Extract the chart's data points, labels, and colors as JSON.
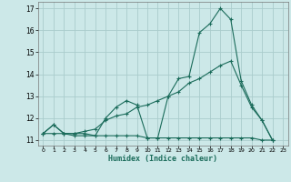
{
  "xlabel": "Humidex (Indice chaleur)",
  "bg_color": "#cce8e8",
  "grid_color": "#aacccc",
  "line_color": "#1a6b5a",
  "xlim": [
    -0.5,
    23.5
  ],
  "ylim": [
    10.75,
    17.3
  ],
  "xticks": [
    0,
    1,
    2,
    3,
    4,
    5,
    6,
    7,
    8,
    9,
    10,
    11,
    12,
    13,
    14,
    15,
    16,
    17,
    18,
    19,
    20,
    21,
    22,
    23
  ],
  "yticks": [
    11,
    12,
    13,
    14,
    15,
    16,
    17
  ],
  "line1_x": [
    0,
    1,
    2,
    3,
    4,
    5,
    6,
    7,
    8,
    9,
    10,
    11,
    12,
    13,
    14,
    15,
    16,
    17,
    18,
    19,
    20,
    21,
    22
  ],
  "line1_y": [
    11.3,
    11.7,
    11.3,
    11.2,
    11.2,
    11.2,
    12.0,
    12.5,
    12.8,
    12.6,
    11.1,
    11.1,
    13.0,
    13.8,
    13.9,
    15.9,
    16.3,
    17.0,
    16.5,
    13.7,
    12.6,
    11.9,
    11.0
  ],
  "line2_x": [
    0,
    1,
    2,
    3,
    4,
    5,
    6,
    7,
    8,
    9,
    10,
    11,
    12,
    13,
    14,
    15,
    16,
    17,
    18,
    19,
    20,
    21,
    22
  ],
  "line2_y": [
    11.3,
    11.7,
    11.3,
    11.3,
    11.4,
    11.5,
    11.9,
    12.1,
    12.2,
    12.5,
    12.6,
    12.8,
    13.0,
    13.2,
    13.6,
    13.8,
    14.1,
    14.4,
    14.6,
    13.5,
    12.5,
    11.9,
    11.0
  ],
  "line3_x": [
    0,
    1,
    2,
    3,
    4,
    5,
    6,
    7,
    8,
    9,
    10,
    11,
    12,
    13,
    14,
    15,
    16,
    17,
    18,
    19,
    20,
    21,
    22
  ],
  "line3_y": [
    11.3,
    11.3,
    11.3,
    11.3,
    11.3,
    11.2,
    11.2,
    11.2,
    11.2,
    11.2,
    11.1,
    11.1,
    11.1,
    11.1,
    11.1,
    11.1,
    11.1,
    11.1,
    11.1,
    11.1,
    11.1,
    11.0,
    11.0
  ]
}
